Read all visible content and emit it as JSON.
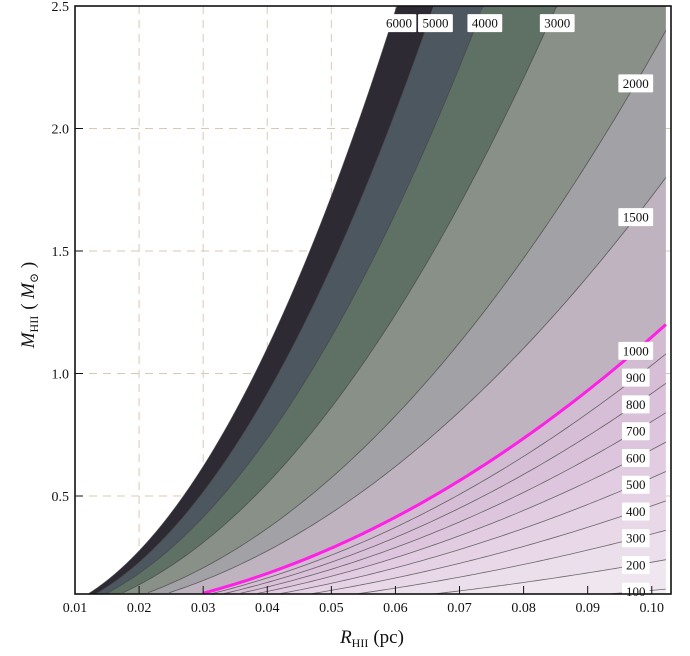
{
  "chart_data": {
    "type": "contour",
    "xlabel": {
      "symbol": "R",
      "subscript": "HII",
      "unit": "(pc)"
    },
    "ylabel": {
      "symbol": "M",
      "subscript": "HII",
      "unit_open": "( ",
      "unit_symbol": "M",
      "unit_sub": "⊙",
      "unit_close": " )"
    },
    "xlim": [
      0.01,
      0.103
    ],
    "ylim": [
      0.1,
      2.5
    ],
    "x_ticks": [
      0.01,
      0.02,
      0.03,
      0.04,
      0.05,
      0.06,
      0.07,
      0.08,
      0.09,
      0.1
    ],
    "x_tick_labels": [
      "0.01",
      "0.02",
      "0.03",
      "0.04",
      "0.05",
      "0.06",
      "0.07",
      "0.08",
      "0.09",
      "0.10"
    ],
    "y_ticks": [
      0.5,
      1.0,
      1.5,
      2.0,
      2.5
    ],
    "y_tick_labels": [
      "0.5",
      "1.0",
      "1.5",
      "2.0",
      "2.5"
    ],
    "grid": true,
    "contour_levels": [
      100,
      200,
      300,
      400,
      500,
      600,
      700,
      800,
      900,
      1000,
      1500,
      2000,
      3000,
      4000,
      5000,
      6000
    ],
    "contour_labels": [
      "100",
      "200",
      "300",
      "400",
      "500",
      "600",
      "700",
      "800",
      "900",
      "1000",
      "1500",
      "2000",
      "3000",
      "4000",
      "5000",
      "6000"
    ],
    "highlighted_level": 1000,
    "colors": {
      "highlight": "#ff1fe6",
      "band_fills": [
        "#f5eef5",
        "#f0e6f0",
        "#ecdfec",
        "#e8d8e8",
        "#e5d2e5",
        "#e1cce1",
        "#ddc6dd",
        "#d9c2d9",
        "#d6bfd6",
        "#d1bcd1",
        "#bfb3bf",
        "#a1a1a6",
        "#889088",
        "#5f7065",
        "#4d5760",
        "#2d2a33"
      ]
    }
  }
}
